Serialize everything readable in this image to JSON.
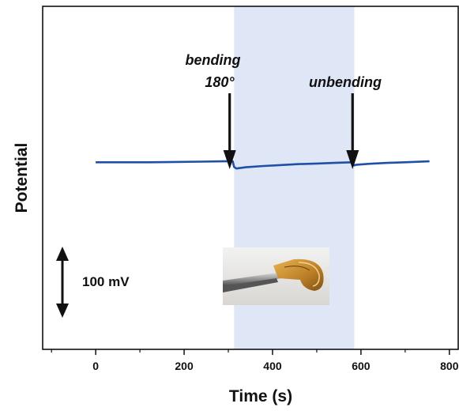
{
  "chart_data": {
    "type": "line",
    "xlabel": "Time (s)",
    "ylabel": "Potential",
    "xlim": [
      -120,
      820
    ],
    "ylim": [
      -6,
      5
    ],
    "x_ticks": [
      0,
      200,
      400,
      600,
      800
    ],
    "grid": false,
    "legend": "none",
    "shaded_region": {
      "x_start": 313,
      "x_end": 585,
      "color": "#dfe6f6"
    },
    "series": [
      {
        "color": "#1f4fa6",
        "x": [
          0,
          60,
          120,
          180,
          240,
          290,
          310,
          313,
          318,
          340,
          380,
          420,
          460,
          500,
          540,
          580,
          585,
          590,
          620,
          660,
          700,
          755
        ],
        "y": [
          0.0,
          0.0,
          0.0,
          0.01,
          0.02,
          0.03,
          0.03,
          -0.15,
          -0.2,
          -0.16,
          -0.12,
          -0.09,
          -0.06,
          -0.04,
          -0.02,
          0.0,
          -0.1,
          -0.08,
          -0.05,
          -0.02,
          0.0,
          0.03
        ]
      }
    ],
    "annotations": [
      {
        "id": "bending",
        "lines": [
          "bending",
          "180°"
        ],
        "x": 313
      },
      {
        "id": "unbending",
        "lines": [
          "unbending"
        ],
        "x": 585
      }
    ],
    "scale_bar": {
      "label": "100 mV"
    },
    "inset_image": {
      "description_icon": "photo-of-bent-film-icon"
    }
  }
}
